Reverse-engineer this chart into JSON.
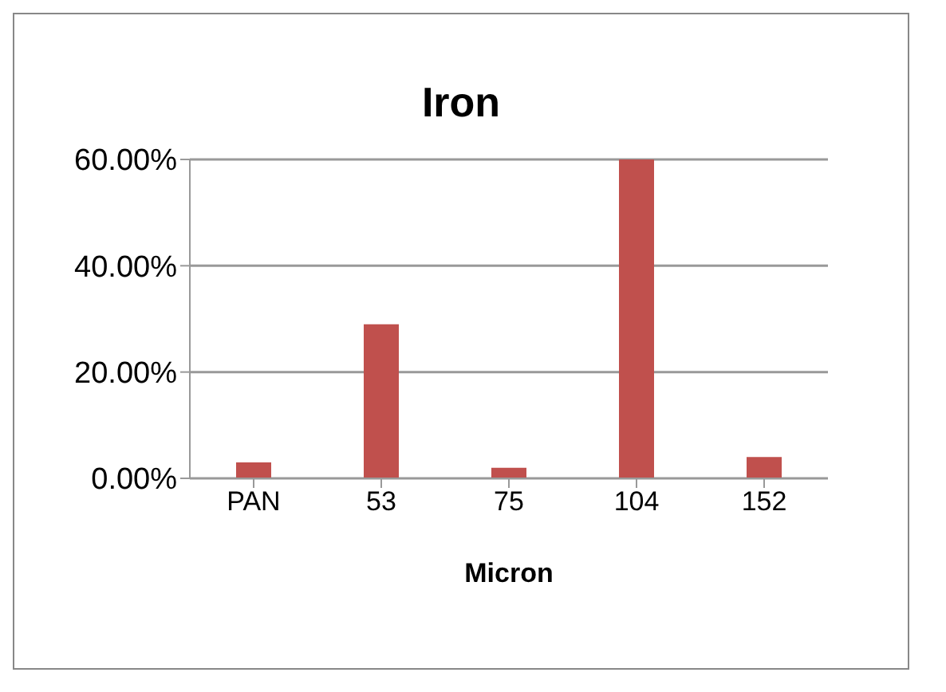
{
  "chart_data": {
    "type": "bar",
    "title": "Iron",
    "xlabel": "Micron",
    "categories": [
      "PAN",
      "53",
      "75",
      "104",
      "152"
    ],
    "values": [
      0.03,
      0.29,
      0.02,
      0.6,
      0.04
    ],
    "color": "#c0504d",
    "ylim": [
      0,
      0.6
    ],
    "yticks": [
      {
        "value": 0,
        "label": "0.00%"
      },
      {
        "value": 0.2,
        "label": "20.00%"
      },
      {
        "value": 0.4,
        "label": "40.00%"
      },
      {
        "value": 0.6,
        "label": "60.00%"
      }
    ],
    "grid": "y"
  }
}
